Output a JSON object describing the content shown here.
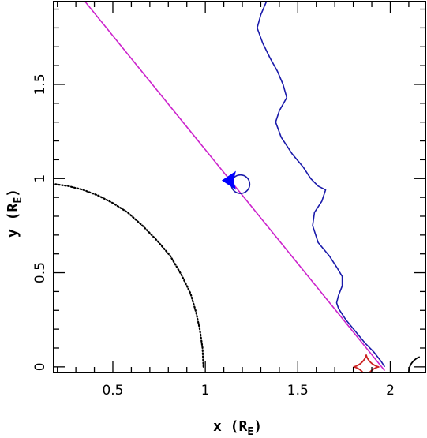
{
  "chart_data": {
    "type": "line",
    "xlabel": "x (R",
    "xlabel_sub": "E",
    "xlabel_close": ")",
    "ylabel": "y (R",
    "ylabel_sub": "E",
    "ylabel_close": ")",
    "xlim": [
      0.18,
      2.19
    ],
    "ylim": [
      -0.03,
      1.94
    ],
    "xticks": [
      {
        "value": 0.5,
        "label": "0.5"
      },
      {
        "value": 1,
        "label": "1"
      },
      {
        "value": 1.5,
        "label": "1.5"
      },
      {
        "value": 2,
        "label": "2"
      }
    ],
    "yticks": [
      {
        "value": 0,
        "label": "0"
      },
      {
        "value": 0.5,
        "label": "0.5"
      },
      {
        "value": 1,
        "label": "1"
      },
      {
        "value": 1.5,
        "label": "1.5"
      }
    ],
    "series": [
      {
        "kind": "line",
        "style": "dotted",
        "color": "#000000",
        "points": [
          [
            0.19,
            0.97
          ],
          [
            0.26,
            0.96
          ],
          [
            0.34,
            0.94
          ],
          [
            0.42,
            0.91
          ],
          [
            0.5,
            0.87
          ],
          [
            0.58,
            0.82
          ],
          [
            0.66,
            0.75
          ],
          [
            0.74,
            0.67
          ],
          [
            0.81,
            0.59
          ],
          [
            0.87,
            0.49
          ],
          [
            0.92,
            0.39
          ],
          [
            0.95,
            0.29
          ],
          [
            0.97,
            0.2
          ],
          [
            0.985,
            0.1
          ],
          [
            0.99,
            0.0
          ]
        ]
      },
      {
        "kind": "line",
        "style": "solid",
        "color": "#cc22cc",
        "points": [
          [
            0.35,
            1.94
          ],
          [
            1.97,
            -0.02
          ]
        ]
      },
      {
        "kind": "line",
        "style": "solid",
        "color": "#1a1aaa",
        "points": [
          [
            1.33,
            1.94
          ],
          [
            1.3,
            1.87
          ],
          [
            1.28,
            1.8
          ],
          [
            1.31,
            1.72
          ],
          [
            1.35,
            1.64
          ],
          [
            1.39,
            1.57
          ],
          [
            1.42,
            1.5
          ],
          [
            1.44,
            1.43
          ],
          [
            1.4,
            1.36
          ],
          [
            1.38,
            1.3
          ],
          [
            1.41,
            1.22
          ],
          [
            1.47,
            1.13
          ],
          [
            1.53,
            1.06
          ],
          [
            1.57,
            1.0
          ],
          [
            1.61,
            0.96
          ],
          [
            1.65,
            0.94
          ],
          [
            1.63,
            0.88
          ],
          [
            1.59,
            0.82
          ],
          [
            1.58,
            0.75
          ],
          [
            1.61,
            0.66
          ],
          [
            1.67,
            0.59
          ],
          [
            1.71,
            0.53
          ],
          [
            1.74,
            0.48
          ],
          [
            1.74,
            0.43
          ],
          [
            1.72,
            0.38
          ],
          [
            1.71,
            0.34
          ],
          [
            1.72,
            0.31
          ],
          [
            1.76,
            0.25
          ],
          [
            1.81,
            0.19
          ],
          [
            1.86,
            0.13
          ],
          [
            1.91,
            0.08
          ],
          [
            1.95,
            0.03
          ],
          [
            1.97,
            0.0
          ]
        ]
      },
      {
        "kind": "circle",
        "color": "#1a1aaa",
        "center": [
          1.19,
          0.97
        ],
        "radius_x": 0.05
      },
      {
        "kind": "marker",
        "shape": "triangle-left",
        "color": "#0000ff",
        "points": [
          [
            1.14,
            0.99
          ]
        ]
      },
      {
        "kind": "astroid",
        "color": "#cc2222",
        "center": [
          1.87,
          0.0
        ],
        "half_width": 0.07,
        "half_height": 0.065
      },
      {
        "kind": "arc",
        "style": "solid",
        "color": "#000000",
        "center": [
          2.19,
          -0.03
        ],
        "radius_x": 0.09,
        "angle_from": 180,
        "angle_to": 110
      }
    ]
  }
}
